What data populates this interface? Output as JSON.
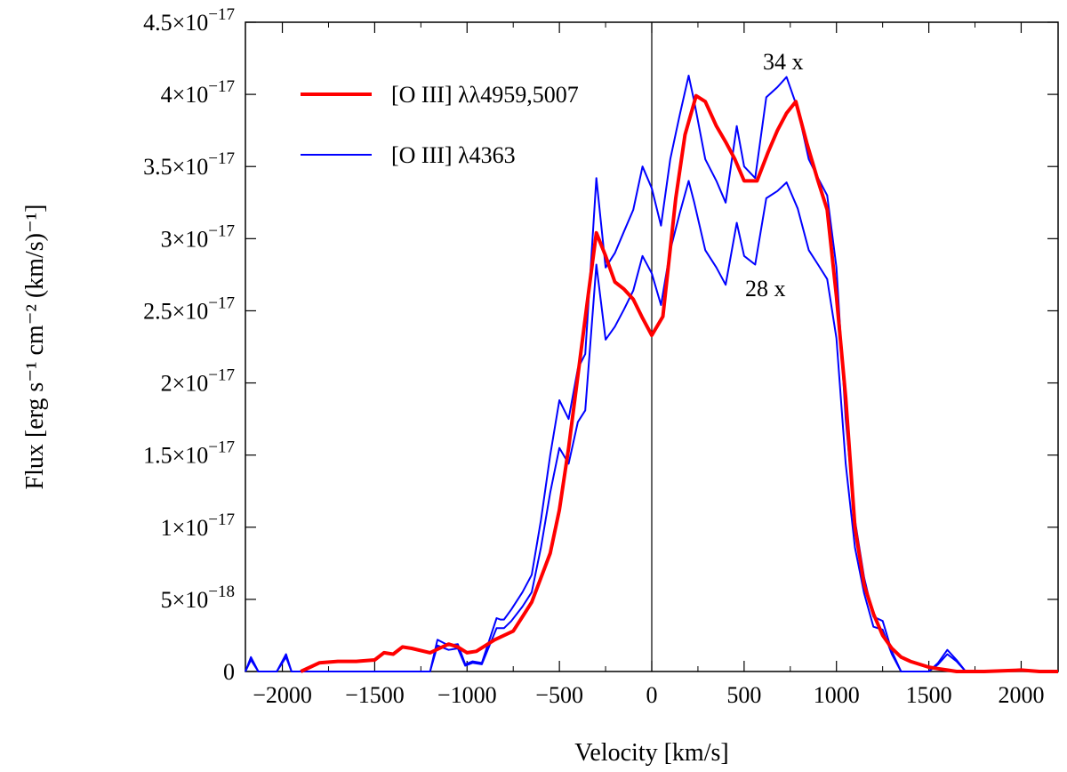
{
  "chart_data": {
    "type": "line",
    "title": "",
    "xlabel": "Velocity [km/s]",
    "ylabel": "Flux [erg s⁻¹ cm⁻² (km/s)⁻¹]",
    "xlim": [
      -2200,
      2200
    ],
    "ylim": [
      0,
      4.5e-17
    ],
    "x_ticks": [
      -2000,
      -1500,
      -1000,
      -500,
      0,
      500,
      1000,
      1500,
      2000
    ],
    "x_tick_labels": [
      "−2000",
      "−1500",
      "−1000",
      "−500",
      "0",
      "500",
      "1000",
      "1500",
      "2000"
    ],
    "y_ticks": [
      0,
      5e-18,
      1e-17,
      1.5e-17,
      2e-17,
      2.5e-17,
      3e-17,
      3.5e-17,
      4e-17,
      4.5e-17
    ],
    "y_tick_labels": [
      {
        "mantissa": "0",
        "exp": ""
      },
      {
        "mantissa": "5×10",
        "exp": "−18"
      },
      {
        "mantissa": "1×10",
        "exp": "−17"
      },
      {
        "mantissa": "1.5×10",
        "exp": "−17"
      },
      {
        "mantissa": "2×10",
        "exp": "−17"
      },
      {
        "mantissa": "2.5×10",
        "exp": "−17"
      },
      {
        "mantissa": "3×10",
        "exp": "−17"
      },
      {
        "mantissa": "3.5×10",
        "exp": "−17"
      },
      {
        "mantissa": "4×10",
        "exp": "−17"
      },
      {
        "mantissa": "4.5×10",
        "exp": "−17"
      }
    ],
    "vertical_line_x": 0,
    "legend_position": "top-left",
    "annotations": [
      {
        "text": "34 x",
        "x": 730,
        "y": 4.2e-17
      },
      {
        "text": "28 x",
        "x": 500,
        "y": 2.6e-17
      }
    ],
    "series": [
      {
        "name": "[O III] λλ4959,5007",
        "color": "#ff0000",
        "width": 4,
        "x": [
          -1900,
          -1800,
          -1700,
          -1600,
          -1500,
          -1450,
          -1400,
          -1350,
          -1300,
          -1200,
          -1150,
          -1100,
          -1050,
          -1000,
          -950,
          -900,
          -850,
          -800,
          -750,
          -700,
          -650,
          -600,
          -550,
          -500,
          -450,
          -400,
          -350,
          -300,
          -250,
          -200,
          -150,
          -100,
          -50,
          0,
          60,
          130,
          180,
          240,
          290,
          350,
          400,
          450,
          500,
          570,
          630,
          680,
          730,
          780,
          840,
          900,
          950,
          1000,
          1050,
          1100,
          1150,
          1200,
          1250,
          1300,
          1350,
          1400,
          1450,
          1500,
          1550,
          1600,
          1650,
          1700,
          1750,
          1800,
          2000,
          2100,
          2200
        ],
        "y": [
          0,
          6e-19,
          7e-19,
          7e-19,
          8e-19,
          1.3e-18,
          1.2e-18,
          1.7e-18,
          1.6e-18,
          1.3e-18,
          1.6e-18,
          1.9e-18,
          1.7e-18,
          1.3e-18,
          1.4e-18,
          1.8e-18,
          2.2e-18,
          2.5e-18,
          2.8e-18,
          3.8e-18,
          4.8e-18,
          6.5e-18,
          8.2e-18,
          1.12e-17,
          1.55e-17,
          2.05e-17,
          2.55e-17,
          3.04e-17,
          2.88e-17,
          2.7e-17,
          2.65e-17,
          2.58e-17,
          2.45e-17,
          2.33e-17,
          2.46e-17,
          3.28e-17,
          3.72e-17,
          3.99e-17,
          3.95e-17,
          3.78e-17,
          3.67e-17,
          3.55e-17,
          3.4e-17,
          3.4e-17,
          3.6e-17,
          3.75e-17,
          3.87e-17,
          3.95e-17,
          3.66e-17,
          3.4e-17,
          3.2e-17,
          2.6e-17,
          1.9e-17,
          1e-17,
          6e-18,
          4e-18,
          2.5e-18,
          1.6e-18,
          1e-18,
          7e-19,
          5e-19,
          3e-19,
          2e-19,
          1e-19,
          0,
          0,
          0,
          0,
          1e-19,
          0,
          0
        ]
      },
      {
        "name": "[O III] λ4363 (×34)",
        "color": "#0000ff",
        "width": 2,
        "x": [
          -2200,
          -2170,
          -2130,
          -2080,
          -2030,
          -1980,
          -1950,
          -1200,
          -1160,
          -1100,
          -1050,
          -1010,
          -970,
          -920,
          -840,
          -820,
          -800,
          -760,
          -700,
          -650,
          -600,
          -550,
          -500,
          -450,
          -400,
          -360,
          -300,
          -250,
          -200,
          -150,
          -100,
          -50,
          0,
          50,
          100,
          150,
          200,
          230,
          290,
          350,
          400,
          460,
          500,
          560,
          620,
          680,
          730,
          790,
          850,
          900,
          950,
          1000,
          1050,
          1100,
          1150,
          1200,
          1250,
          1300,
          1350,
          1400,
          1450,
          1500,
          1550,
          1600,
          1650,
          1700,
          1750,
          1800
        ],
        "y": [
          0,
          1e-18,
          0,
          0,
          0,
          1.2e-18,
          0,
          0,
          2.2e-18,
          1.8e-18,
          1.9e-18,
          5e-19,
          7e-19,
          6e-19,
          3.7e-18,
          3.6e-18,
          3.6e-18,
          4.3e-18,
          5.5e-18,
          6.7e-18,
          1.05e-17,
          1.5e-17,
          1.88e-17,
          1.75e-17,
          2.1e-17,
          2.2e-17,
          3.42e-17,
          2.8e-17,
          2.9e-17,
          3.05e-17,
          3.2e-17,
          3.5e-17,
          3.35e-17,
          3.09e-17,
          3.55e-17,
          3.85e-17,
          4.13e-17,
          3.95e-17,
          3.55e-17,
          3.4e-17,
          3.25e-17,
          3.78e-17,
          3.5e-17,
          3.42e-17,
          3.98e-17,
          4.05e-17,
          4.12e-17,
          3.9e-17,
          3.55e-17,
          3.42e-17,
          3.3e-17,
          2.8e-17,
          1.75e-17,
          1.05e-17,
          6.5e-18,
          3.8e-18,
          3.5e-18,
          1.4e-18,
          0,
          0,
          0,
          0,
          6e-19,
          1.5e-18,
          8e-19,
          0,
          0,
          0
        ]
      },
      {
        "name": "[O III] λ4363 (×28)",
        "color": "#0000ff",
        "width": 2,
        "x": [
          -2200,
          -2170,
          -2130,
          -2080,
          -2030,
          -1980,
          -1950,
          -1200,
          -1160,
          -1100,
          -1050,
          -1010,
          -970,
          -920,
          -840,
          -820,
          -800,
          -760,
          -700,
          -650,
          -600,
          -550,
          -500,
          -450,
          -400,
          -360,
          -300,
          -250,
          -200,
          -150,
          -100,
          -50,
          0,
          50,
          100,
          150,
          200,
          230,
          290,
          350,
          400,
          460,
          500,
          560,
          620,
          680,
          730,
          790,
          850,
          900,
          950,
          1000,
          1050,
          1100,
          1150,
          1200,
          1250,
          1300,
          1350,
          1400,
          1450,
          1500,
          1550,
          1600,
          1650,
          1700,
          1750,
          1800
        ],
        "y": [
          0,
          8e-19,
          0,
          0,
          0,
          1e-18,
          0,
          0,
          1.8e-18,
          1.5e-18,
          1.6e-18,
          4e-19,
          6e-19,
          5e-19,
          3e-18,
          3e-18,
          3e-18,
          3.5e-18,
          4.5e-18,
          5.5e-18,
          8.6e-18,
          1.24e-17,
          1.55e-17,
          1.44e-17,
          1.73e-17,
          1.81e-17,
          2.82e-17,
          2.3e-17,
          2.39e-17,
          2.51e-17,
          2.64e-17,
          2.88e-17,
          2.76e-17,
          2.54e-17,
          2.92e-17,
          3.17e-17,
          3.4e-17,
          3.25e-17,
          2.92e-17,
          2.8e-17,
          2.68e-17,
          3.11e-17,
          2.88e-17,
          2.82e-17,
          3.28e-17,
          3.33e-17,
          3.39e-17,
          3.21e-17,
          2.92e-17,
          2.82e-17,
          2.72e-17,
          2.31e-17,
          1.44e-17,
          8.6e-18,
          5.4e-18,
          3.1e-18,
          2.9e-18,
          1.2e-18,
          0,
          0,
          0,
          0,
          5e-19,
          1.2e-18,
          7e-19,
          0,
          0,
          0
        ]
      }
    ],
    "legend": [
      {
        "label": "[O III] λλ4959,5007",
        "color": "#ff0000",
        "width": 4
      },
      {
        "label": "[O III] λ4363",
        "color": "#0000ff",
        "width": 2
      }
    ]
  }
}
